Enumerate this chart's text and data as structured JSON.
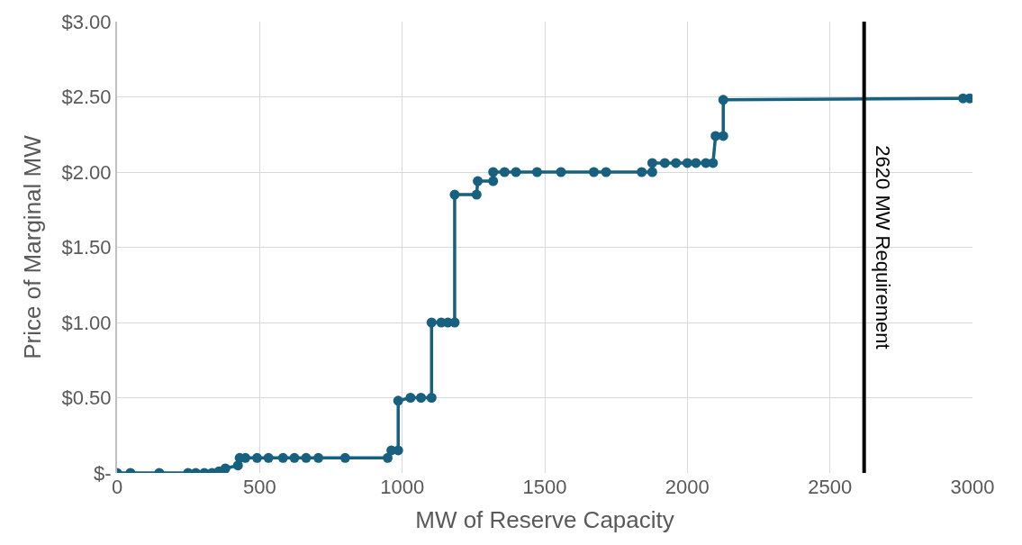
{
  "chart_data": {
    "type": "line",
    "xlabel": "MW of Reserve Capacity",
    "ylabel": "Price of Marginal MW",
    "x": [
      0,
      47,
      148,
      249,
      276,
      306,
      333,
      357,
      380,
      424,
      430,
      450,
      491,
      531,
      582,
      622,
      663,
      706,
      800,
      949,
      962,
      986,
      986,
      1029,
      1066,
      1103,
      1103,
      1137,
      1160,
      1184,
      1184,
      1261,
      1265,
      1319,
      1319,
      1359,
      1399,
      1473,
      1557,
      1672,
      1715,
      1840,
      1877,
      1877,
      1921,
      1960,
      2000,
      2030,
      2065,
      2090,
      2099,
      2126,
      2126,
      2967,
      2990
    ],
    "series": [
      {
        "color": "#17607f",
        "values": [
          0,
          0,
          0,
          0,
          0,
          0,
          0,
          0.01,
          0.03,
          0.05,
          0.1,
          0.1,
          0.1,
          0.1,
          0.1,
          0.1,
          0.1,
          0.1,
          0.1,
          0.1,
          0.15,
          0.15,
          0.48,
          0.5,
          0.5,
          0.5,
          1.0,
          1.0,
          1.0,
          1.0,
          1.85,
          1.85,
          1.94,
          1.94,
          2.0,
          2.0,
          2.0,
          2.0,
          2.0,
          2.0,
          2.0,
          2.0,
          2.0,
          2.06,
          2.06,
          2.06,
          2.06,
          2.06,
          2.06,
          2.06,
          2.24,
          2.24,
          2.48,
          2.49,
          2.49
        ]
      }
    ],
    "xlim": [
      0,
      3000
    ],
    "xticks": [
      0,
      500,
      1000,
      1500,
      2000,
      2500,
      3000
    ],
    "ylim": [
      0,
      3
    ],
    "yticks": [
      {
        "value": 0,
        "label": "$-"
      },
      {
        "value": 0.5,
        "label": "$0.50"
      },
      {
        "value": 1,
        "label": "$1.00"
      },
      {
        "value": 1.5,
        "label": "$1.50"
      },
      {
        "value": 2,
        "label": "$2.00"
      },
      {
        "value": 2.5,
        "label": "$2.50"
      },
      {
        "value": 3,
        "label": "$3.00"
      }
    ],
    "ref_lines": [
      {
        "axis": "x",
        "value": 2620,
        "label": "2620 MW Requirement",
        "color": "#000000"
      }
    ],
    "grid": true,
    "marker": "circle",
    "line_style": "solid",
    "legend": false
  }
}
